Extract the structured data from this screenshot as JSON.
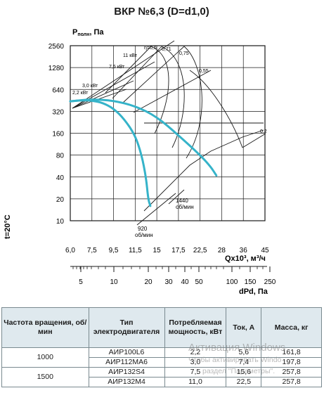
{
  "chart_data": {
    "type": "line",
    "title": "ВКР №6,3 (D=d1,0)",
    "ylabel": "P полн, Па",
    "ylabel_main": "P",
    "ylabel_sub": "полн",
    "ylabel_unit": ", Па",
    "xlabel": "Qx10³, м³/ч",
    "x2label": "dPd, Па",
    "side_label": "t=20°C",
    "y_scale": "log2",
    "ylim": [
      10,
      2560
    ],
    "y_ticks": [
      2560,
      1280,
      640,
      320,
      160,
      80,
      40,
      20,
      10
    ],
    "x_ticks": [
      "6,0",
      "7,5",
      "9,5",
      "11,5",
      "15",
      "17,5",
      "22,5",
      "28",
      "36",
      "45"
    ],
    "x2_ticks": [
      "5",
      "10",
      "20",
      "30",
      "40",
      "50",
      "100",
      "150",
      "250"
    ],
    "grid": true,
    "efficiency_labels": [
      "η=0,6",
      "0,71",
      "0,75",
      "0,55",
      "0,2"
    ],
    "power_labels": [
      "11 кВт",
      "7,5 кВт",
      "3,0 кВт",
      "2,2 кВт"
    ],
    "speed_labels": [
      {
        "rpm": "1440",
        "unit": "об/мин"
      },
      {
        "rpm": "920",
        "unit": "об/мин"
      }
    ],
    "series": [
      {
        "name": "1440 об/мин",
        "color": "#35b3c9",
        "points": [
          [
            0,
            440
          ],
          [
            1,
            470
          ],
          [
            2,
            450
          ],
          [
            3,
            380
          ],
          [
            4,
            270
          ],
          [
            5,
            150
          ],
          [
            6,
            80
          ],
          [
            6.5,
            55
          ],
          [
            6.75,
            42
          ]
        ]
      },
      {
        "name": "920 об/мин",
        "color": "#35b3c9",
        "points": [
          [
            0,
            440
          ],
          [
            0.6,
            455
          ],
          [
            1,
            450
          ],
          [
            1.5,
            420
          ],
          [
            2,
            350
          ],
          [
            2.5,
            250
          ],
          [
            3,
            150
          ],
          [
            3.3,
            80
          ],
          [
            3.5,
            40
          ],
          [
            3.6,
            20
          ],
          [
            3.7,
            16
          ]
        ]
      }
    ]
  },
  "table": {
    "headers": [
      "Частота вращения, об/мин",
      "Тип электродвигателя",
      "Потребляемая мощность, кВт",
      "Ток, А",
      "Масса, кг"
    ],
    "rows": [
      {
        "speed": "1000",
        "motor": "АИР100L6",
        "power": "2,2",
        "current": "5,6",
        "mass": "161,8"
      },
      {
        "speed": "",
        "motor": "АИР112МА6",
        "power": "3,0",
        "current": "7,4",
        "mass": "197,8"
      },
      {
        "speed": "1500",
        "motor": "АИР132S4",
        "power": "7,5",
        "current": "15,6",
        "mass": "257,8"
      },
      {
        "speed": "",
        "motor": "АИР132М4",
        "power": "11,0",
        "current": "22,5",
        "mass": "257,8"
      }
    ]
  },
  "watermark": {
    "line1": "Активация Windows",
    "line2": "Чтобы активировать Windo",
    "line3": "раздел \"Параметры\"."
  }
}
